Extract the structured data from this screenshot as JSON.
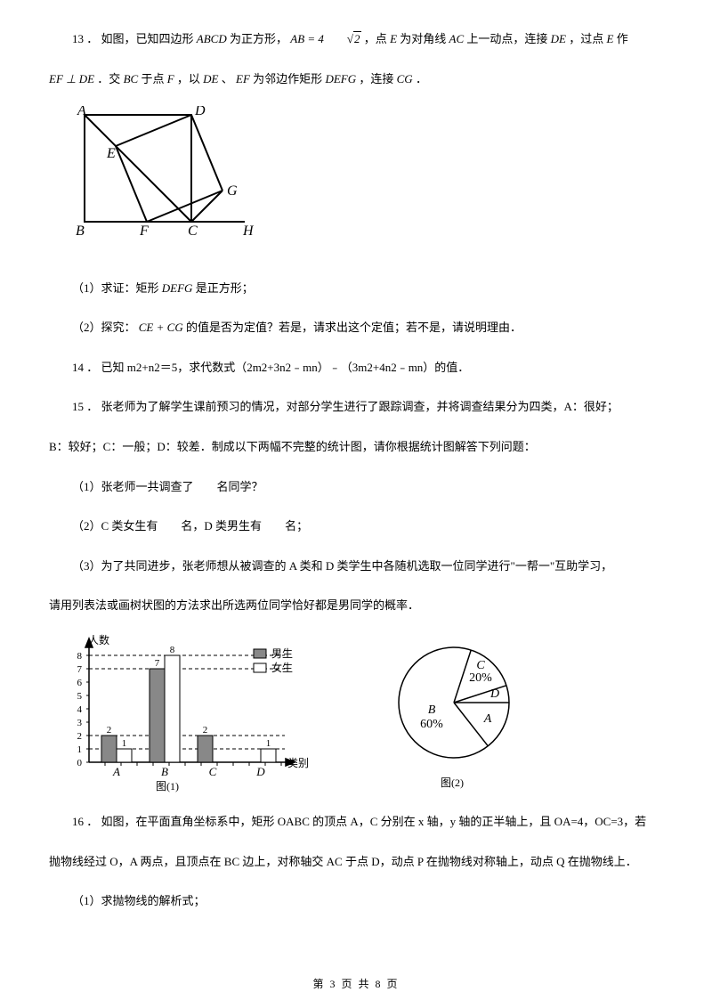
{
  "q13": {
    "num": "13 ．",
    "line1a": "如图，已知四边形",
    "abcd": "ABCD",
    "line1b": "为正方形，",
    "ab_eq": "AB = 4",
    "sqrt_arg": "2",
    "line1c": "，点",
    "E": "E",
    "line1d": "为对角线",
    "AC": "AC",
    "line1e": "上一动点，连接",
    "DE": "DE",
    "line1f": "，过点",
    "line1g": "作",
    "line2a": "EF ⊥ DE",
    "line2b": "．交",
    "BC": "BC",
    "line2c": "于点",
    "F": "F",
    "line2d": "，以",
    "line2e": "、",
    "EF": "EF",
    "line2f": "为邻边作矩形",
    "DEFG": "DEFG",
    "line2g": "，连接",
    "CG": "CG",
    "line2h": "．",
    "vA": "A",
    "vB": "B",
    "vC": "C",
    "vD": "D",
    "vE": "E",
    "vF": "F",
    "vG": "G",
    "vH": "H",
    "sub1": "（1）求证：矩形",
    "sub1b": "是正方形；",
    "sub2": "（2）探究：",
    "ce_cg": "CE + CG",
    "sub2b": "的值是否为定值？若是，请求出这个定值；若不是，请说明理由．"
  },
  "q14": {
    "text": "14 ． 已知 m2+n2＝5，求代数式（2m2+3n2﹣mn）﹣（3m2+4n2﹣mn）的值．"
  },
  "q15": {
    "line1": "15 ． 张老师为了解学生课前预习的情况，对部分学生进行了跟踪调查，并将调查结果分为四类，A：很好；",
    "line2": "B：较好；C：一般；D：较差．制成以下两幅不完整的统计图，请你根据统计图解答下列问题：",
    "sub1a": "（1）张老师一共调查了",
    "sub1b": "名同学？",
    "sub2a": "（2）C 类女生有",
    "sub2b": "名，D 类男生有",
    "sub2c": "名；",
    "sub3": "（3）为了共同进步，张老师想从被调查的 A 类和 D 类学生中各随机选取一位同学进行\"一帮一\"互助学习，",
    "sub3b": "请用列表法或画树状图的方法求出所选两位同学恰好都是男同学的概率．",
    "bar": {
      "ylabel": "人数",
      "xlabel": "类别",
      "caption": "图(1)",
      "yticks": [
        "0",
        "1",
        "2",
        "3",
        "4",
        "5",
        "6",
        "7",
        "8"
      ],
      "cats": [
        "A",
        "B",
        "C",
        "D"
      ],
      "male": [
        2,
        7,
        2,
        0
      ],
      "female": [
        1,
        8,
        0,
        1
      ],
      "male_label_top": [
        "2",
        "7",
        "2",
        ""
      ],
      "female_label_top": [
        "1",
        "8",
        "",
        "1"
      ],
      "legend_male": "男生",
      "legend_female": "女生",
      "bar_fill_male": "#888888",
      "bar_fill_female": "#ffffff",
      "grid_color": "#000000"
    },
    "pie": {
      "caption": "图(2)",
      "slices": [
        {
          "label": "B",
          "pct": "60%",
          "color": "#ffffff"
        },
        {
          "label": "C",
          "pct": "20%",
          "color": "#ffffff"
        },
        {
          "label": "D",
          "pct": "",
          "color": "#ffffff"
        },
        {
          "label": "A",
          "pct": "",
          "color": "#ffffff"
        }
      ]
    }
  },
  "q16": {
    "line1": "16 ． 如图，在平面直角坐标系中，矩形 OABC 的顶点 A，C 分别在 x 轴，y 轴的正半轴上，且 OA=4，OC=3，若",
    "line2": "抛物线经过 O，A 两点，且顶点在 BC 边上，对称轴交 AC 于点 D，动点 P 在抛物线对称轴上，动点 Q 在抛物线上．",
    "sub1": "（1）求抛物线的解析式；"
  },
  "footer": "第 3 页 共 8 页"
}
